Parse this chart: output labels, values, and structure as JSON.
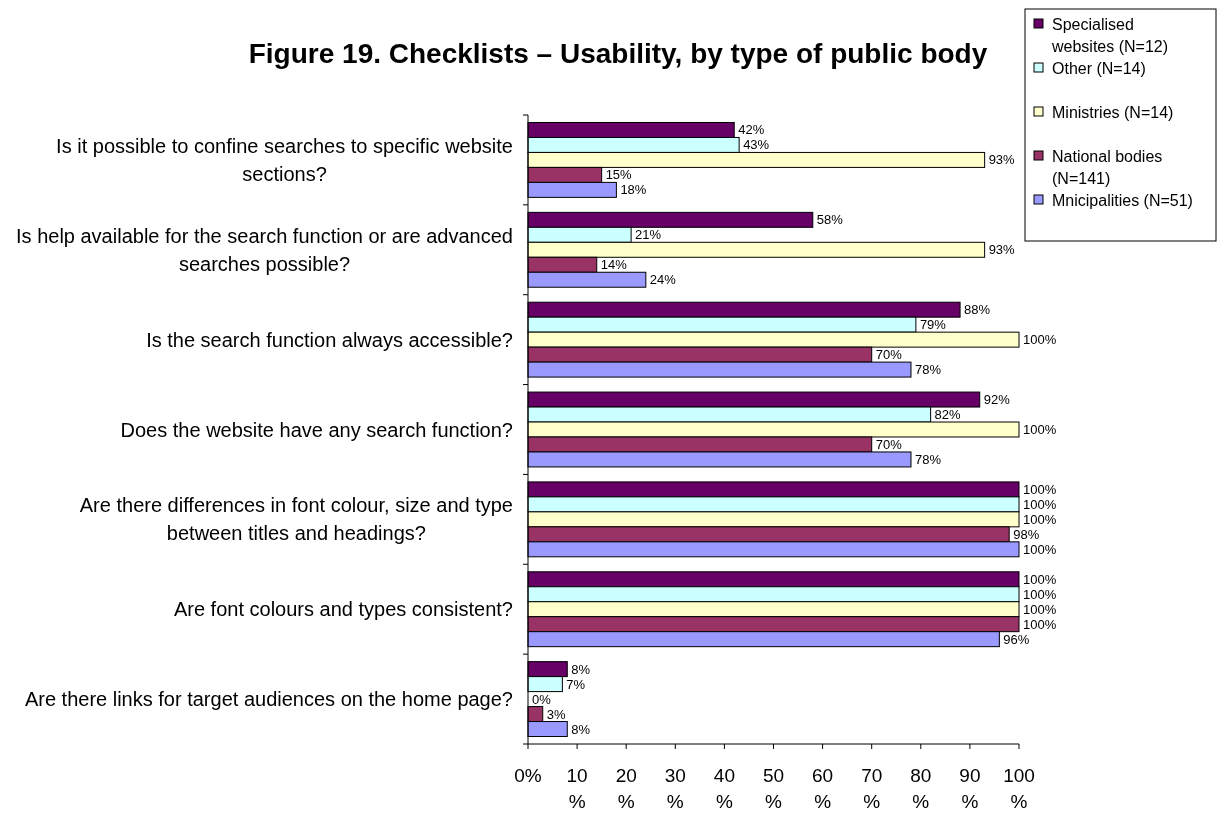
{
  "chart_data": {
    "type": "bar",
    "orientation": "horizontal",
    "title": "Figure 19. Checklists – Usability, by type of public body",
    "categories": [
      "Is it possible to confine searches to specific website sections?",
      "Is help available for the search function or are advanced searches possible?",
      "Is the search function always accessible?",
      "Does the website have any search function?",
      "Are there differences in font colour, size and type between titles and headings?",
      "Are font colours and types consistent?",
      "Are there links for target audiences on the home page?"
    ],
    "series": [
      {
        "name": "Specialised websites (N=12)",
        "color": "#660066",
        "values": [
          42,
          58,
          88,
          92,
          100,
          100,
          8
        ],
        "value_labels": [
          "42%",
          "58%",
          "88%",
          "92%",
          "100%",
          "100%",
          "8%"
        ]
      },
      {
        "name": "Other (N=14)",
        "color": "#ccffff",
        "values": [
          43,
          21,
          79,
          82,
          100,
          100,
          7
        ],
        "value_labels": [
          "43%",
          "21%",
          "79%",
          "82%",
          "100%",
          "100%",
          "7%"
        ]
      },
      {
        "name": "Ministries (N=14)",
        "color": "#ffffcc",
        "values": [
          93,
          93,
          100,
          100,
          100,
          100,
          0
        ],
        "value_labels": [
          "93%",
          "93%",
          "100%",
          "100%",
          "100%",
          "100%",
          "0%"
        ]
      },
      {
        "name": "National bodies (N=141)",
        "color": "#993366",
        "values": [
          15,
          14,
          70,
          70,
          98,
          100,
          3
        ],
        "value_labels": [
          "15%",
          "14%",
          "70%",
          "70%",
          "98%",
          "100%",
          "3%"
        ]
      },
      {
        "name": "Mnicipalities (N=51)",
        "color": "#9999ff",
        "values": [
          18,
          24,
          78,
          78,
          100,
          96,
          8
        ],
        "value_labels": [
          "18%",
          "24%",
          "78%",
          "78%",
          "100%",
          "96%",
          "8%"
        ]
      }
    ],
    "xlim": [
      0,
      100
    ],
    "xticks": [
      {
        "value": 0,
        "label": "0%"
      },
      {
        "value": 10,
        "label": "10%"
      },
      {
        "value": 20,
        "label": "20%"
      },
      {
        "value": 30,
        "label": "30%"
      },
      {
        "value": 40,
        "label": "40%"
      },
      {
        "value": 50,
        "label": "50%"
      },
      {
        "value": 60,
        "label": "60%"
      },
      {
        "value": 70,
        "label": "70%"
      },
      {
        "value": 80,
        "label": "80%"
      },
      {
        "value": 90,
        "label": "90%"
      },
      {
        "value": 100,
        "label": "100%"
      }
    ],
    "legend": "top right"
  }
}
